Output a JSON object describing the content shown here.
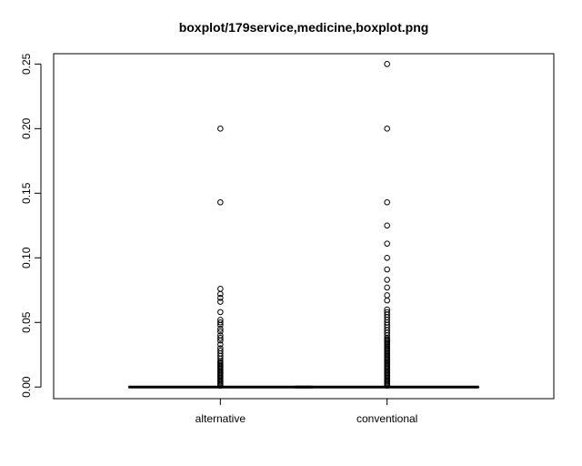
{
  "chart_data": {
    "type": "boxplot",
    "title": "boxplot/179service,medicine,boxplot.png",
    "xlabel": "",
    "ylabel": "",
    "ylim": [
      -0.009,
      0.258
    ],
    "yticks": [
      0.0,
      0.05,
      0.1,
      0.15,
      0.2,
      0.25
    ],
    "ytick_labels": [
      "0.00",
      "0.05",
      "0.10",
      "0.15",
      "0.20",
      "0.25"
    ],
    "grid": false,
    "legend": "none",
    "categories": [
      "alternative",
      "conventional"
    ],
    "series": [
      {
        "category": "alternative",
        "min": 0.0,
        "q1": 0.0,
        "median": 0.0,
        "q3": 0.0,
        "max": 0.0,
        "outliers": [
          0.001,
          0.002,
          0.003,
          0.004,
          0.005,
          0.006,
          0.007,
          0.008,
          0.009,
          0.01,
          0.011,
          0.012,
          0.013,
          0.014,
          0.015,
          0.016,
          0.017,
          0.018,
          0.019,
          0.02,
          0.022,
          0.024,
          0.026,
          0.028,
          0.03,
          0.033,
          0.036,
          0.038,
          0.04,
          0.043,
          0.045,
          0.048,
          0.05,
          0.052,
          0.058,
          0.066,
          0.069,
          0.072,
          0.076,
          0.143,
          0.2
        ]
      },
      {
        "category": "conventional",
        "min": 0.0,
        "q1": 0.0,
        "median": 0.0,
        "q3": 0.0,
        "max": 0.0,
        "outliers": [
          0.001,
          0.002,
          0.003,
          0.004,
          0.005,
          0.006,
          0.007,
          0.008,
          0.009,
          0.01,
          0.011,
          0.012,
          0.013,
          0.014,
          0.015,
          0.016,
          0.017,
          0.018,
          0.019,
          0.02,
          0.021,
          0.022,
          0.023,
          0.024,
          0.025,
          0.026,
          0.027,
          0.028,
          0.029,
          0.03,
          0.031,
          0.032,
          0.033,
          0.034,
          0.035,
          0.036,
          0.037,
          0.038,
          0.04,
          0.042,
          0.044,
          0.046,
          0.048,
          0.05,
          0.052,
          0.054,
          0.056,
          0.058,
          0.06,
          0.067,
          0.071,
          0.077,
          0.083,
          0.091,
          0.1,
          0.111,
          0.125,
          0.143,
          0.2,
          0.25
        ]
      }
    ]
  }
}
